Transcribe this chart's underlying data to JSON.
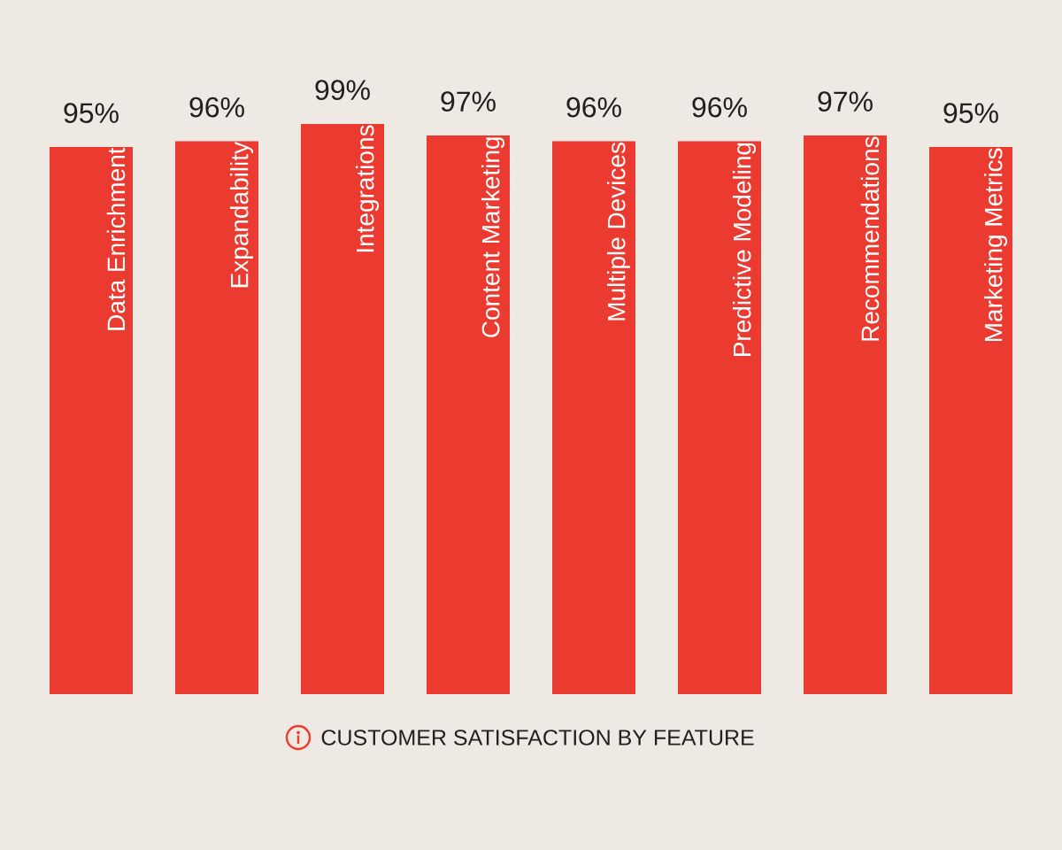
{
  "chart_data": {
    "type": "bar",
    "title": "CUSTOMER SATISFACTION BY FEATURE",
    "categories": [
      "Data Enrichment",
      "Expandability",
      "Integrations",
      "Content Marketing",
      "Multiple Devices",
      "Predictive  Modeling",
      "Recommendations",
      "Marketing Metrics"
    ],
    "values": [
      95,
      96,
      99,
      97,
      96,
      96,
      97,
      95
    ],
    "value_labels": [
      "95%",
      "96%",
      "99%",
      "97%",
      "96%",
      "96%",
      "97%",
      "95%"
    ],
    "color": "#eb3a30"
  }
}
